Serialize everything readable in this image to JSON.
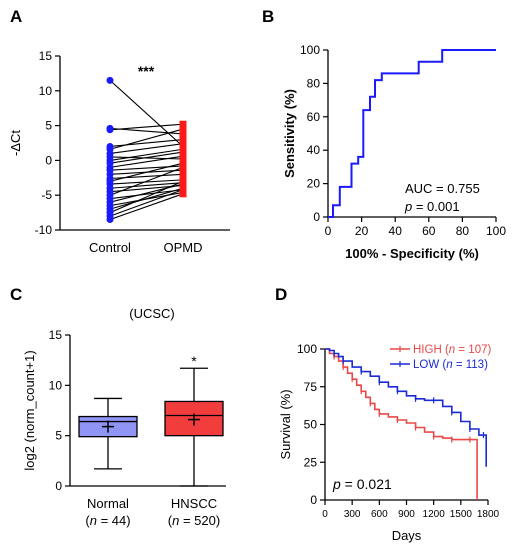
{
  "chart_data": [
    {
      "panel": "A",
      "type": "scatter",
      "subtype": "paired-lines",
      "categories": [
        "Control",
        "OPMD"
      ],
      "ylabel": "-ΔCt",
      "ylim": [
        -10,
        15
      ],
      "yticks": [
        -10,
        -5,
        0,
        5,
        10,
        15
      ],
      "annotation": "***",
      "colors": {
        "Control": "#1a1aff",
        "OPMD": "#ff1a1a"
      },
      "pairs": [
        [
          11.5,
          2.0
        ],
        [
          4.6,
          3.8
        ],
        [
          4.4,
          5.2
        ],
        [
          2.0,
          3.0
        ],
        [
          1.6,
          4.5
        ],
        [
          1.0,
          2.4
        ],
        [
          0.5,
          0.2
        ],
        [
          0.0,
          1.6
        ],
        [
          -0.4,
          1.2
        ],
        [
          -1.0,
          0.6
        ],
        [
          -1.4,
          -0.8
        ],
        [
          -2.0,
          -1.4
        ],
        [
          -2.6,
          -2.0
        ],
        [
          -3.0,
          -0.4
        ],
        [
          -3.4,
          -2.8
        ],
        [
          -4.0,
          -3.2
        ],
        [
          -4.5,
          -3.6
        ],
        [
          -5.0,
          -1.0
        ],
        [
          -5.5,
          -4.2
        ],
        [
          -6.0,
          -3.4
        ],
        [
          -6.5,
          -4.6
        ],
        [
          -7.0,
          -4.0
        ],
        [
          -7.5,
          -3.0
        ],
        [
          -8.0,
          -4.2
        ],
        [
          -8.5,
          -4.8
        ]
      ]
    },
    {
      "panel": "B",
      "type": "line",
      "subtype": "roc",
      "xlabel": "100% - Specificity (%)",
      "ylabel": "Sensitivity (%)",
      "xlim": [
        0,
        100
      ],
      "ylim": [
        0,
        100
      ],
      "ticks": [
        0,
        20,
        40,
        60,
        80,
        100
      ],
      "color": "#1a1aff",
      "points": [
        [
          0,
          0
        ],
        [
          3,
          0
        ],
        [
          3,
          7
        ],
        [
          7,
          7
        ],
        [
          7,
          18
        ],
        [
          14,
          18
        ],
        [
          14,
          32
        ],
        [
          18,
          32
        ],
        [
          18,
          36
        ],
        [
          21,
          36
        ],
        [
          21,
          64
        ],
        [
          25,
          64
        ],
        [
          25,
          72
        ],
        [
          28,
          72
        ],
        [
          28,
          82
        ],
        [
          32,
          82
        ],
        [
          32,
          86
        ],
        [
          54,
          86
        ],
        [
          54,
          93
        ],
        [
          68,
          93
        ],
        [
          68,
          100
        ],
        [
          100,
          100
        ]
      ],
      "auc_text": "AUC = 0.755",
      "p_text": "p = 0.001"
    },
    {
      "panel": "C",
      "type": "box",
      "title": "(UCSC)",
      "ylabel": "log2 (norm_count+1)",
      "ylim": [
        0,
        15
      ],
      "yticks": [
        0,
        5,
        10,
        15
      ],
      "annotation": "*",
      "groups": [
        {
          "name": "Normal",
          "n_label": "(n = 44)",
          "min": 1.7,
          "q1": 4.9,
          "median": 6.4,
          "q3": 6.9,
          "max": 8.7,
          "mean": 5.9,
          "color": "#8f94f5"
        },
        {
          "name": "HNSCC",
          "n_label": "(n = 520)",
          "min": 0.0,
          "q1": 5.0,
          "median": 7.0,
          "q3": 8.4,
          "max": 11.7,
          "mean": 6.6,
          "color": "#f23d3d"
        }
      ]
    },
    {
      "panel": "D",
      "type": "line",
      "subtype": "kaplan-meier",
      "xlabel": "Days",
      "ylabel": "Survival (%)",
      "xlim": [
        0,
        1800
      ],
      "ylim": [
        0,
        100
      ],
      "xticks": [
        0,
        300,
        600,
        900,
        1200,
        1500,
        1800
      ],
      "yticks": [
        0,
        25,
        50,
        75,
        100
      ],
      "p_text": "p = 0.021",
      "series": [
        {
          "name": "HIGH (n = 107)",
          "color": "#e84848",
          "points": [
            [
              0,
              100
            ],
            [
              50,
              97
            ],
            [
              100,
              95
            ],
            [
              150,
              92
            ],
            [
              200,
              88
            ],
            [
              250,
              84
            ],
            [
              300,
              80
            ],
            [
              350,
              76
            ],
            [
              400,
              72
            ],
            [
              450,
              68
            ],
            [
              500,
              64
            ],
            [
              550,
              60
            ],
            [
              600,
              57
            ],
            [
              700,
              55
            ],
            [
              800,
              53
            ],
            [
              900,
              51
            ],
            [
              1000,
              48
            ],
            [
              1100,
              45
            ],
            [
              1200,
              42
            ],
            [
              1300,
              41
            ],
            [
              1400,
              40
            ],
            [
              1500,
              40
            ],
            [
              1600,
              40
            ],
            [
              1680,
              40
            ],
            [
              1680,
              0
            ]
          ]
        },
        {
          "name": "LOW (n = 113)",
          "color": "#1a2ad4",
          "points": [
            [
              0,
              100
            ],
            [
              50,
              99
            ],
            [
              100,
              97
            ],
            [
              150,
              95
            ],
            [
              200,
              92
            ],
            [
              300,
              88
            ],
            [
              400,
              85
            ],
            [
              500,
              82
            ],
            [
              600,
              78
            ],
            [
              700,
              75
            ],
            [
              800,
              72
            ],
            [
              900,
              69
            ],
            [
              1000,
              67
            ],
            [
              1100,
              66
            ],
            [
              1200,
              66
            ],
            [
              1300,
              62
            ],
            [
              1400,
              58
            ],
            [
              1500,
              52
            ],
            [
              1600,
              47
            ],
            [
              1700,
              43
            ],
            [
              1750,
              43
            ],
            [
              1780,
              22
            ]
          ]
        }
      ]
    }
  ],
  "labels": {
    "panel_a": "A",
    "panel_b": "B",
    "panel_c": "C",
    "panel_d": "D"
  }
}
